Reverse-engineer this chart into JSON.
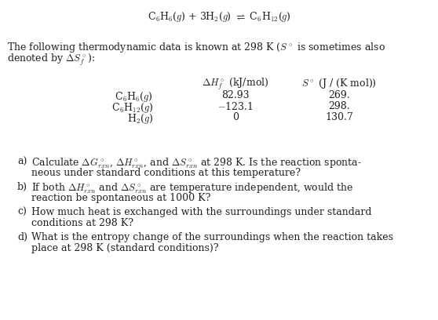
{
  "title_eq": "C$_6$H$_6$($g$) + 3H$_2$($g$) $\\rightleftharpoons$ C$_6$H$_{12}$($g$)",
  "intro_line1": "The following thermodynamic data is known at 298 K ($S^\\circ$ is sometimes also",
  "intro_line2": "denoted by $\\Delta S^\\circ_f$):",
  "col_header1": "$\\Delta H^\\circ_f$ (kJ/mol)",
  "col_header2": "$S^\\circ$ (J / (K mol))",
  "row_labels": [
    "C$_6$H$_6$($g$)",
    "C$_6$H$_{12}$($g$)",
    "H$_2$($g$)"
  ],
  "col1_vals": [
    "82.93",
    "$-$123.1",
    "0"
  ],
  "col2_vals": [
    "269.",
    "298.",
    "130.7"
  ],
  "qa": "a)",
  "qb": "b)",
  "qc": "c)",
  "qd": "d)",
  "qa_line1": "Calculate $\\Delta G^\\circ_{rxn}$, $\\Delta H^\\circ_{rxn}$, and $\\Delta S^\\circ_{rxn}$ at 298 K. Is the reaction sponta-",
  "qa_line2": "neous under standard conditions at this temperature?",
  "qb_line1": "If both $\\Delta H^\\circ_{rxn}$ and $\\Delta S^\\circ_{rxn}$ are temperature independent, would the",
  "qb_line2": "reaction be spontaneous at 1000 K?",
  "qc_line1": "How much heat is exchanged with the surroundings under standard",
  "qc_line2": "conditions at 298 K?",
  "qd_line1": "What is the entropy change of the surroundings when the reaction takes",
  "qd_line2": "place at 298 K (standard conditions)?",
  "bg_color": "#ffffff",
  "text_color": "#231f20",
  "font_size": 9.0,
  "fig_width": 5.58,
  "fig_height": 4.08,
  "dpi": 100
}
